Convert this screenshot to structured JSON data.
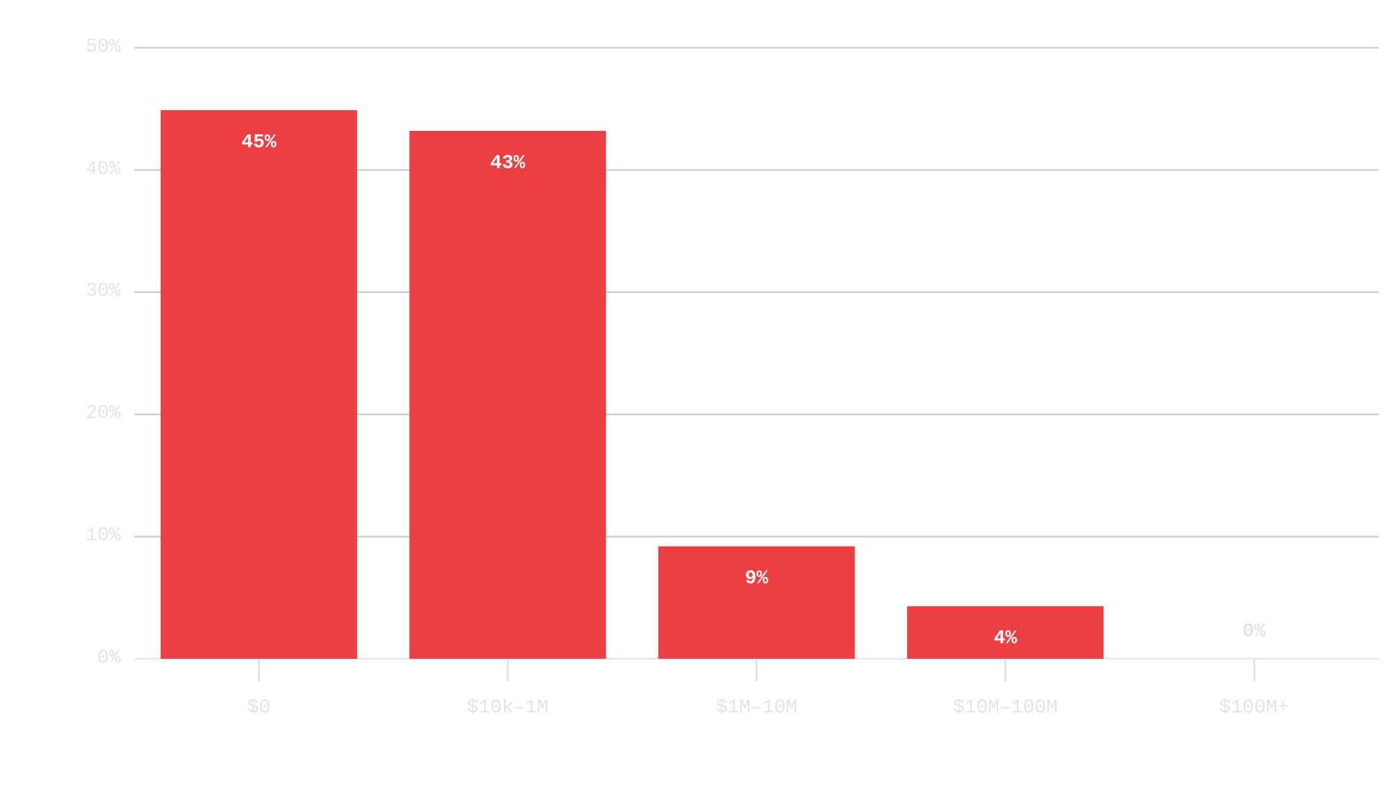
{
  "chart_data": {
    "type": "bar",
    "categories": [
      "$0",
      "$10k–1M",
      "$1M–10M",
      "$10M–100M",
      "$100M+"
    ],
    "values": [
      44.9,
      43.2,
      9.2,
      4.3,
      0
    ],
    "value_labels": [
      "45%",
      "43%",
      "9%",
      "4%",
      "0%"
    ],
    "color": "#eb3f44",
    "ylim": [
      0,
      50
    ],
    "yticks": [
      {
        "value": 0,
        "label": "0%"
      },
      {
        "value": 10,
        "label": "10%"
      },
      {
        "value": 20,
        "label": "20%"
      },
      {
        "value": 30,
        "label": "30%"
      },
      {
        "value": 40,
        "label": "40%"
      },
      {
        "value": 50,
        "label": "50%"
      }
    ],
    "grid": true
  }
}
